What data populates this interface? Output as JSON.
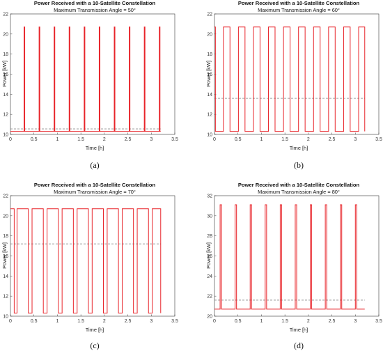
{
  "colors": {
    "series": "#e8242a",
    "reference": "#888888"
  },
  "chart_data": [
    {
      "type": "line",
      "caption": "(a)",
      "title": "Power Received with a 10-Satellite Constellation",
      "subtitle": "Maximum Transmission Angle = 50°",
      "xlabel": "Time [h]",
      "ylabel": "Power [kW]",
      "xlim": [
        0,
        3.5
      ],
      "ylim": [
        10,
        22
      ],
      "xticks": [
        "0",
        "0.5",
        "1",
        "1.5",
        "2",
        "2.5",
        "3",
        "3.5"
      ],
      "yticks": [
        "10",
        "12",
        "14",
        "16",
        "18",
        "20",
        "22"
      ],
      "low": 10.3,
      "high": 20.7,
      "reference": 10.55,
      "t_end": 3.2,
      "pulses": [
        {
          "start": 0.29,
          "end": 0.305
        },
        {
          "start": 0.61,
          "end": 0.625
        },
        {
          "start": 0.93,
          "end": 0.945
        },
        {
          "start": 1.25,
          "end": 1.265
        },
        {
          "start": 1.57,
          "end": 1.585
        },
        {
          "start": 1.89,
          "end": 1.905
        },
        {
          "start": 2.21,
          "end": 2.225
        },
        {
          "start": 2.53,
          "end": 2.545
        },
        {
          "start": 2.85,
          "end": 2.865
        },
        {
          "start": 3.17,
          "end": 3.185
        }
      ]
    },
    {
      "type": "line",
      "caption": "(b)",
      "title": "Power Received with a 10-Satellite Constellation",
      "subtitle": "Maximum Transmission Angle = 60°",
      "xlabel": "Time [h]",
      "ylabel": "Power [kW]",
      "xlim": [
        0,
        3.5
      ],
      "ylim": [
        10,
        22
      ],
      "xticks": [
        "0",
        "0.5",
        "1",
        "1.5",
        "2",
        "2.5",
        "3",
        "3.5"
      ],
      "yticks": [
        "10",
        "12",
        "14",
        "16",
        "18",
        "20",
        "22"
      ],
      "low": 10.3,
      "high": 20.7,
      "reference": 13.6,
      "t_end": 3.2,
      "pulses": [
        {
          "start": 0.0,
          "end": 0.02
        },
        {
          "start": 0.19,
          "end": 0.33
        },
        {
          "start": 0.51,
          "end": 0.65
        },
        {
          "start": 0.83,
          "end": 0.97
        },
        {
          "start": 1.15,
          "end": 1.29
        },
        {
          "start": 1.47,
          "end": 1.61
        },
        {
          "start": 1.79,
          "end": 1.93
        },
        {
          "start": 2.11,
          "end": 2.25
        },
        {
          "start": 2.43,
          "end": 2.57
        },
        {
          "start": 2.75,
          "end": 2.89
        },
        {
          "start": 3.07,
          "end": 3.2
        }
      ]
    },
    {
      "type": "line",
      "caption": "(c)",
      "title": "Power Received with a 10-Satellite Constellation",
      "subtitle": "Maximum Transmission Angle = 70°",
      "xlabel": "Time [h]",
      "ylabel": "Power [kW]",
      "xlim": [
        0,
        3.5
      ],
      "ylim": [
        10,
        22
      ],
      "xticks": [
        "0",
        "0.5",
        "1",
        "1.5",
        "2",
        "2.5",
        "3",
        "3.5"
      ],
      "yticks": [
        "10",
        "12",
        "14",
        "16",
        "18",
        "20",
        "22"
      ],
      "low": 10.3,
      "high": 20.7,
      "reference": 17.2,
      "t_end": 3.2,
      "pulses": [
        {
          "start": 0.0,
          "end": 0.08
        },
        {
          "start": 0.14,
          "end": 0.38
        },
        {
          "start": 0.46,
          "end": 0.7
        },
        {
          "start": 0.78,
          "end": 1.02
        },
        {
          "start": 1.1,
          "end": 1.34
        },
        {
          "start": 1.42,
          "end": 1.66
        },
        {
          "start": 1.74,
          "end": 1.98
        },
        {
          "start": 2.06,
          "end": 2.3
        },
        {
          "start": 2.38,
          "end": 2.62
        },
        {
          "start": 2.7,
          "end": 2.94
        },
        {
          "start": 3.02,
          "end": 3.2
        }
      ]
    },
    {
      "type": "line",
      "caption": "(d)",
      "title": "Power Received with a 10-Satellite Constellation",
      "subtitle": "Maximum Transmission Angle = 80°",
      "xlabel": "Time [h]",
      "ylabel": "Power [kW]",
      "xlim": [
        0,
        3.5
      ],
      "ylim": [
        20,
        32
      ],
      "xticks": [
        "0",
        "0.5",
        "1",
        "1.5",
        "2",
        "2.5",
        "3",
        "3.5"
      ],
      "yticks": [
        "20",
        "22",
        "24",
        "26",
        "28",
        "30",
        "32"
      ],
      "low": 20.7,
      "high": 31.1,
      "reference": 21.6,
      "t_end": 3.2,
      "pulses": [
        {
          "start": 0.12,
          "end": 0.15
        },
        {
          "start": 0.44,
          "end": 0.47
        },
        {
          "start": 0.76,
          "end": 0.79
        },
        {
          "start": 1.08,
          "end": 1.11
        },
        {
          "start": 1.4,
          "end": 1.43
        },
        {
          "start": 1.72,
          "end": 1.75
        },
        {
          "start": 2.04,
          "end": 2.07
        },
        {
          "start": 2.36,
          "end": 2.39
        },
        {
          "start": 2.68,
          "end": 2.71
        },
        {
          "start": 3.0,
          "end": 3.03
        }
      ]
    }
  ]
}
